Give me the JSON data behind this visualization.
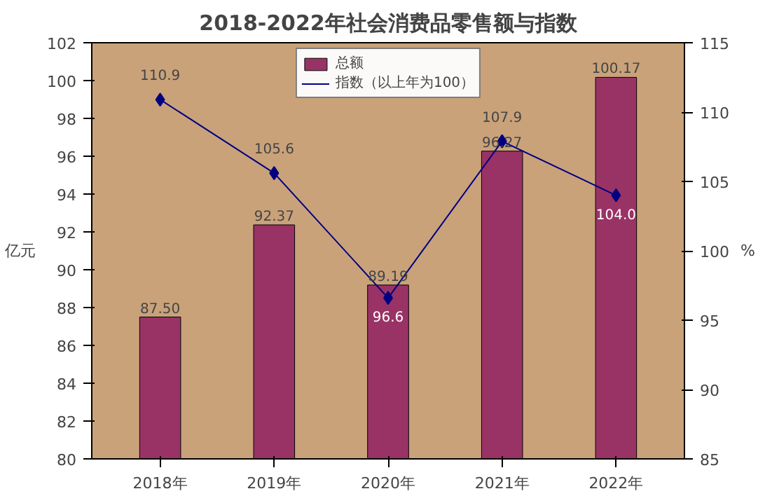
{
  "chart_data": {
    "type": "bar",
    "title": "2018-2022年社会消费品零售额与指数",
    "ylabel": "亿元",
    "y2label": "%",
    "categories": [
      "2018年",
      "2019年",
      "2020年",
      "2021年",
      "2022年"
    ],
    "series": [
      {
        "name": "总额",
        "color": "#993366",
        "values": [
          87.5,
          92.37,
          89.19,
          96.27,
          100.17
        ],
        "value_labels": [
          "87.50",
          "92.37",
          "89.19",
          "96.27",
          "100.17"
        ]
      },
      {
        "name": "指数（以上年为100）",
        "type": "line",
        "axis": "y2",
        "color": "#000080",
        "marker": "diamond",
        "values": [
          110.9,
          105.6,
          96.6,
          107.9,
          104.0
        ],
        "value_labels": [
          "110.9",
          "105.6",
          "96.6",
          "107.9",
          "104.0"
        ]
      }
    ],
    "ylim": [
      80,
      102
    ],
    "yticks": [
      80,
      82,
      84,
      86,
      88,
      90,
      92,
      94,
      96,
      98,
      100,
      102
    ],
    "y2lim": [
      85,
      115
    ],
    "y2ticks": [
      85,
      90,
      95,
      100,
      105,
      110,
      115
    ],
    "grid": false,
    "legend": "top"
  }
}
